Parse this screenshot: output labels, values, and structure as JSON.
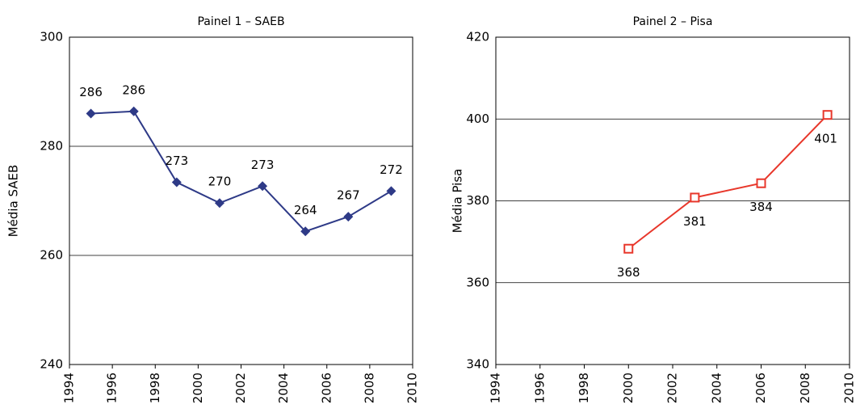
{
  "chart_data": [
    {
      "type": "line",
      "title": "Painel 1 – SAEB",
      "ylabel": "Média SAEB",
      "x": [
        1995,
        1997,
        1999,
        2001,
        2003,
        2005,
        2007,
        2009
      ],
      "series": [
        {
          "name": "SAEB",
          "color": "#2e3a87",
          "marker": "diamond",
          "values": [
            286,
            286.4,
            273.4,
            269.6,
            272.7,
            264.4,
            267.1,
            271.8
          ],
          "value_labels": [
            "286",
            "286",
            "273",
            "270",
            "273",
            "264",
            "267",
            "272"
          ]
        }
      ],
      "xlim": [
        1994,
        2010
      ],
      "xticks": [
        1994,
        1996,
        1998,
        2000,
        2002,
        2004,
        2006,
        2008,
        2010
      ],
      "ylim": [
        240,
        300
      ],
      "yticks": [
        240,
        260,
        280,
        300
      ],
      "grid": true
    },
    {
      "type": "line",
      "title": "Painel 2 – Pisa",
      "ylabel": "Média Pisa",
      "x": [
        2000,
        2003,
        2006,
        2009
      ],
      "series": [
        {
          "name": "Pisa",
          "color": "#e8372b",
          "marker": "square-open",
          "values": [
            368.3,
            380.8,
            384.3,
            401
          ],
          "value_labels": [
            "368",
            "381",
            "384",
            "401"
          ]
        }
      ],
      "xlim": [
        1994,
        2010
      ],
      "xticks": [
        1994,
        1996,
        1998,
        2000,
        2002,
        2004,
        2006,
        2008,
        2010
      ],
      "ylim": [
        340,
        420
      ],
      "yticks": [
        340,
        360,
        380,
        400,
        420
      ],
      "grid": true
    }
  ]
}
